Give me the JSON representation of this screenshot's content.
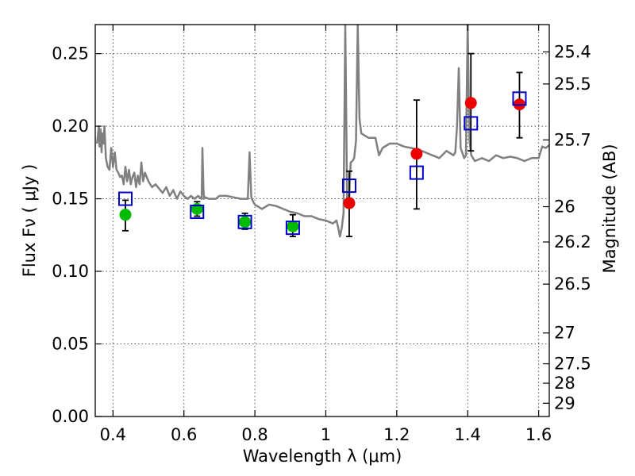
{
  "chart_data": {
    "type": "scatter",
    "title": "",
    "xlabel": "Wavelength  λ (μm)",
    "ylabel": "Flux  Fν  ( μJy )",
    "y2label": "Magnitude (AB)",
    "xlim": [
      0.35,
      1.63
    ],
    "ylim": [
      0.0,
      0.27
    ],
    "grid": true,
    "x_ticks": [
      0.4,
      0.6,
      0.8,
      1.0,
      1.2,
      1.4,
      1.6
    ],
    "x_tick_labels": [
      "0.4",
      "0.6",
      "0.8",
      "1",
      "1.2",
      "1.4",
      "1.6"
    ],
    "y_ticks": [
      0.0,
      0.05,
      0.1,
      0.15,
      0.2,
      0.25
    ],
    "y_tick_labels": [
      "0.00",
      "0.05",
      "0.10",
      "0.15",
      "0.20",
      "0.25"
    ],
    "mag_ticks": [
      {
        "mag": 25.4,
        "label": "25.4"
      },
      {
        "mag": 25.5,
        "label": "25.5"
      },
      {
        "mag": 25.7,
        "label": "25.7"
      },
      {
        "mag": 26.0,
        "label": "26"
      },
      {
        "mag": 26.2,
        "label": "26.2"
      },
      {
        "mag": 26.5,
        "label": "26.5"
      },
      {
        "mag": 27.0,
        "label": "27"
      },
      {
        "mag": 27.5,
        "label": "27.5"
      },
      {
        "mag": 28.0,
        "label": "28"
      },
      {
        "mag": 29.0,
        "label": "29"
      }
    ],
    "series": [
      {
        "name": "model spectrum",
        "style": "line",
        "color": "#808080",
        "x": [
          0.355,
          0.36,
          0.362,
          0.365,
          0.368,
          0.37,
          0.373,
          0.376,
          0.38,
          0.385,
          0.39,
          0.395,
          0.4,
          0.405,
          0.41,
          0.415,
          0.42,
          0.425,
          0.43,
          0.435,
          0.44,
          0.445,
          0.45,
          0.455,
          0.46,
          0.465,
          0.47,
          0.475,
          0.48,
          0.485,
          0.49,
          0.5,
          0.51,
          0.52,
          0.53,
          0.54,
          0.55,
          0.56,
          0.57,
          0.58,
          0.59,
          0.6,
          0.61,
          0.62,
          0.63,
          0.64,
          0.65,
          0.652,
          0.655,
          0.657,
          0.66,
          0.67,
          0.68,
          0.69,
          0.7,
          0.72,
          0.74,
          0.76,
          0.78,
          0.785,
          0.79,
          0.795,
          0.8,
          0.82,
          0.84,
          0.86,
          0.88,
          0.9,
          0.92,
          0.94,
          0.96,
          0.98,
          1.0,
          1.01,
          1.02,
          1.03,
          1.035,
          1.04,
          1.045,
          1.05,
          1.055,
          1.06,
          1.065,
          1.07,
          1.075,
          1.08,
          1.085,
          1.09,
          1.095,
          1.1,
          1.12,
          1.14,
          1.15,
          1.16,
          1.18,
          1.2,
          1.22,
          1.24,
          1.26,
          1.28,
          1.3,
          1.32,
          1.34,
          1.36,
          1.365,
          1.37,
          1.375,
          1.38,
          1.39,
          1.395,
          1.4,
          1.405,
          1.41,
          1.42,
          1.44,
          1.46,
          1.48,
          1.5,
          1.52,
          1.54,
          1.56,
          1.58,
          1.6,
          1.61,
          1.62,
          1.63
        ],
        "y": [
          0.188,
          0.2,
          0.186,
          0.198,
          0.182,
          0.195,
          0.188,
          0.2,
          0.178,
          0.172,
          0.17,
          0.185,
          0.172,
          0.182,
          0.17,
          0.168,
          0.165,
          0.166,
          0.16,
          0.172,
          0.162,
          0.17,
          0.16,
          0.165,
          0.168,
          0.158,
          0.166,
          0.16,
          0.175,
          0.162,
          0.168,
          0.162,
          0.158,
          0.16,
          0.157,
          0.154,
          0.158,
          0.152,
          0.156,
          0.15,
          0.155,
          0.152,
          0.15,
          0.152,
          0.15,
          0.152,
          0.15,
          0.185,
          0.157,
          0.15,
          0.151,
          0.15,
          0.15,
          0.15,
          0.152,
          0.152,
          0.151,
          0.15,
          0.15,
          0.182,
          0.151,
          0.148,
          0.146,
          0.143,
          0.146,
          0.145,
          0.143,
          0.141,
          0.14,
          0.138,
          0.138,
          0.136,
          0.135,
          0.134,
          0.133,
          0.135,
          0.13,
          0.124,
          0.13,
          0.14,
          0.27,
          0.15,
          0.145,
          0.175,
          0.176,
          0.178,
          0.19,
          0.27,
          0.205,
          0.195,
          0.192,
          0.192,
          0.18,
          0.185,
          0.188,
          0.188,
          0.186,
          0.185,
          0.184,
          0.182,
          0.18,
          0.178,
          0.183,
          0.18,
          0.182,
          0.2,
          0.24,
          0.185,
          0.178,
          0.18,
          0.27,
          0.19,
          0.18,
          0.176,
          0.178,
          0.176,
          0.18,
          0.178,
          0.179,
          0.178,
          0.176,
          0.178,
          0.178,
          0.186,
          0.185,
          0.187
        ]
      },
      {
        "name": "observed (green)",
        "style": "errorbar-circle",
        "color": "#00bb00",
        "x": [
          0.435,
          0.637,
          0.772,
          0.907
        ],
        "y": [
          0.139,
          0.143,
          0.134,
          0.131
        ],
        "yerr_low": [
          0.128,
          0.138,
          0.129,
          0.124
        ],
        "yerr_high": [
          0.149,
          0.148,
          0.14,
          0.139
        ]
      },
      {
        "name": "observed (red)",
        "style": "errorbar-circle",
        "color": "#ee0000",
        "x": [
          1.066,
          1.256,
          1.409,
          1.546
        ],
        "y": [
          0.147,
          0.181,
          0.216,
          0.215
        ],
        "yerr_low": [
          0.124,
          0.143,
          0.183,
          0.192
        ],
        "yerr_high": [
          0.169,
          0.218,
          0.25,
          0.237
        ]
      },
      {
        "name": "model photometry",
        "style": "open-square",
        "color": "#0000cc",
        "x": [
          0.435,
          0.637,
          0.772,
          0.907,
          1.066,
          1.256,
          1.409,
          1.546
        ],
        "y": [
          0.15,
          0.141,
          0.134,
          0.13,
          0.159,
          0.168,
          0.202,
          0.219
        ]
      }
    ]
  }
}
